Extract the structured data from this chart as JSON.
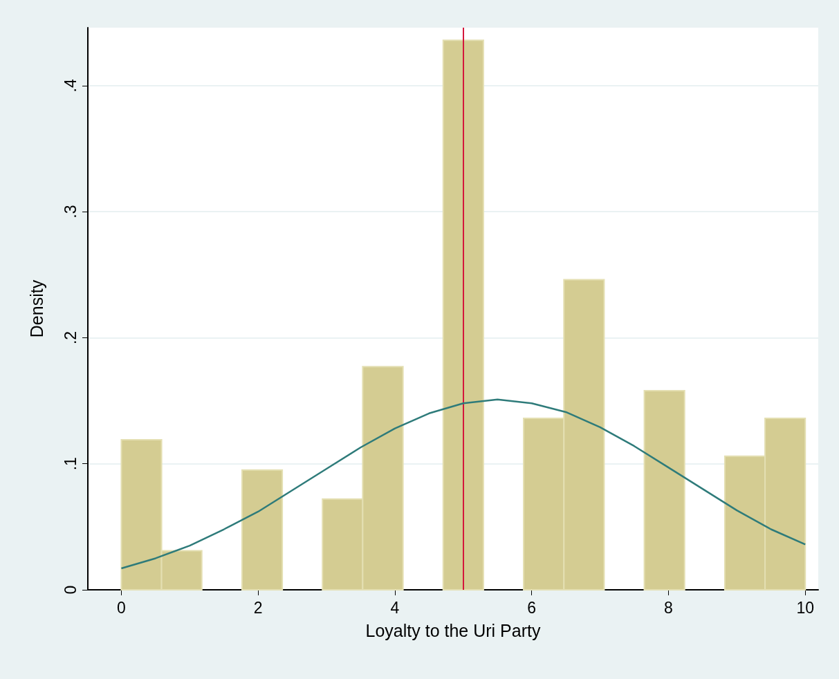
{
  "chart_data": {
    "type": "histogram",
    "xlabel": "Loyalty to the Uri Party",
    "ylabel": "Density",
    "bins": [
      0,
      0.588,
      1.176,
      1.765,
      2.353,
      2.941,
      3.529,
      4.118,
      4.706,
      5.294,
      5.882,
      6.471,
      7.059,
      7.647,
      8.235,
      8.824,
      9.412,
      10
    ],
    "values": [
      0.119,
      0.031,
      0,
      0.095,
      0,
      0.072,
      0.177,
      0,
      0.436,
      0,
      0.136,
      0.246,
      0,
      0.158,
      0,
      0.106,
      0.136
    ],
    "color": "#d4cc92",
    "series": [
      {
        "type": "line",
        "color": "#2e7b7a",
        "x": [
          0,
          0.5,
          1,
          1.5,
          2,
          2.5,
          3,
          3.5,
          4,
          4.5,
          5,
          5.5,
          6,
          6.5,
          7,
          7.5,
          8,
          8.5,
          9,
          9.5,
          10
        ],
        "values": [
          0.017,
          0.025,
          0.035,
          0.048,
          0.062,
          0.079,
          0.096,
          0.113,
          0.128,
          0.14,
          0.148,
          0.151,
          0.148,
          0.141,
          0.129,
          0.114,
          0.097,
          0.08,
          0.063,
          0.048,
          0.036
        ]
      }
    ],
    "ref_lines": [
      {
        "axis": "x",
        "value": 5,
        "color": "#d4173c"
      }
    ],
    "xlim": [
      -0.49,
      10.19
    ],
    "xticks": [
      0,
      2,
      4,
      6,
      8,
      10
    ],
    "ylim": [
      0,
      0.446
    ],
    "yticks": [
      0,
      {
        "value": 0.1,
        "label": ".1"
      },
      {
        "value": 0.2,
        "label": ".2"
      },
      {
        "value": 0.3,
        "label": ".3"
      },
      {
        "value": 0.4,
        "label": ".4"
      }
    ],
    "grid": "y",
    "marker": "none",
    "line_style": "solid"
  }
}
